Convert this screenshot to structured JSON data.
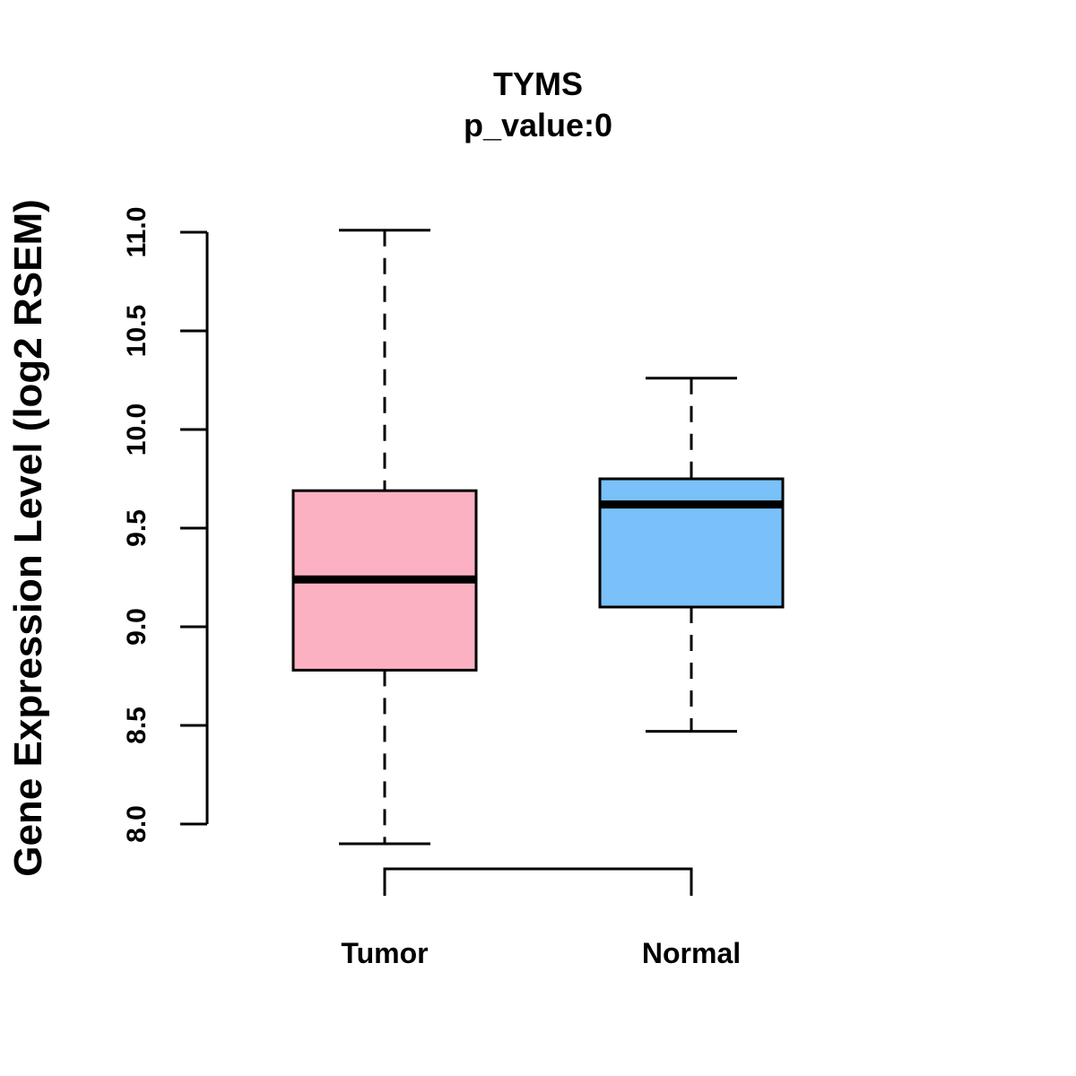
{
  "chart_data": {
    "type": "box",
    "title": "TYMS",
    "subtitle": "p_value:0",
    "ylabel": "Gene Expression Level (log2 RSEM)",
    "xlabel": "",
    "ylim": [
      8.0,
      11.0
    ],
    "yticks": [
      8.0,
      8.5,
      9.0,
      9.5,
      10.0,
      10.5,
      11.0
    ],
    "ytick_labels": [
      "8.0",
      "8.5",
      "9.0",
      "9.5",
      "10.0",
      "10.5",
      "11.0"
    ],
    "categories": [
      "Tumor",
      "Normal"
    ],
    "series": [
      {
        "name": "Tumor",
        "color": "#FBB1C2",
        "whisker_low": 7.9,
        "q1": 8.78,
        "median": 9.24,
        "q3": 9.69,
        "whisker_high": 11.01
      },
      {
        "name": "Normal",
        "color": "#79C1F8",
        "whisker_low": 8.47,
        "q1": 9.1,
        "median": 9.62,
        "q3": 9.75,
        "whisker_high": 10.26
      }
    ],
    "comparison_bracket": [
      "Tumor",
      "Normal"
    ]
  }
}
